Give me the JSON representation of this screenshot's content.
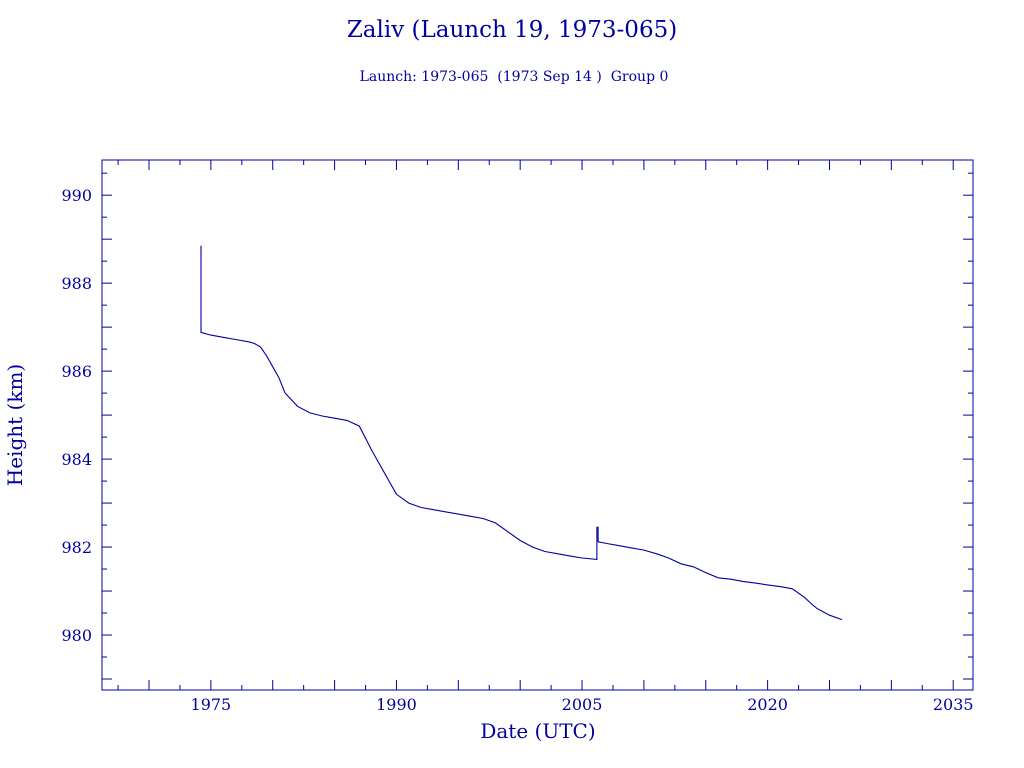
{
  "colors": {
    "ink": "#0000a0",
    "background": "#ffffff"
  },
  "chart_data": {
    "type": "line",
    "title": "Zaliv (Launch 19, 1973-065)",
    "subtitle": "Launch: 1973-065  (1973 Sep 14 )  Group 0",
    "xlabel": "Date (UTC)",
    "ylabel": "Height (km)",
    "xlim": [
      1966.2,
      2036.6
    ],
    "ylim": [
      978.75,
      990.8
    ],
    "x_major_ticks": [
      1975,
      1990,
      2005,
      2020,
      2035
    ],
    "x_tick_labels": [
      "1975",
      "1990",
      "2005",
      "2020",
      "2035"
    ],
    "y_major_ticks": [
      980,
      982,
      984,
      986,
      988,
      990
    ],
    "y_tick_labels": [
      "980",
      "982",
      "984",
      "986",
      "988",
      "990"
    ],
    "grid": false,
    "legend": "none",
    "series": [
      {
        "x": [
          1974.2,
          1974.2,
          1975.0,
          1976.0,
          1977.0,
          1978.0,
          1978.5,
          1979.0,
          1979.5,
          1980.0,
          1980.5,
          1981.0,
          1982.0,
          1983.0,
          1984.0,
          1985.0,
          1986.0,
          1987.0,
          1988.0,
          1989.0,
          1990.0,
          1991.0,
          1992.0,
          1993.0,
          1994.0,
          1995.0,
          1996.0,
          1997.0,
          1998.0,
          1999.0,
          2000.0,
          2001.0,
          2002.0,
          2003.0,
          2004.0,
          2005.0,
          2006.2,
          2006.2,
          2006.3,
          2006.3,
          2007.0,
          2008.0,
          2009.0,
          2010.0,
          2011.0,
          2012.0,
          2013.0,
          2014.0,
          2015.0,
          2016.0,
          2017.0,
          2018.0,
          2019.0,
          2020.0,
          2021.0,
          2022.0,
          2023.0,
          2023.5,
          2024.0,
          2025.0,
          2026.0
        ],
        "y": [
          988.85,
          986.88,
          986.82,
          986.77,
          986.72,
          986.67,
          986.63,
          986.55,
          986.35,
          986.1,
          985.85,
          985.5,
          985.2,
          985.05,
          984.98,
          984.93,
          984.88,
          984.75,
          984.2,
          983.7,
          983.2,
          983.0,
          982.9,
          982.85,
          982.8,
          982.75,
          982.7,
          982.65,
          982.55,
          982.35,
          982.15,
          982.0,
          981.9,
          981.85,
          981.8,
          981.75,
          981.72,
          982.45,
          982.45,
          982.12,
          982.08,
          982.03,
          981.98,
          981.93,
          981.85,
          981.75,
          981.62,
          981.55,
          981.42,
          981.3,
          981.27,
          981.22,
          981.18,
          981.14,
          981.1,
          981.05,
          980.85,
          980.72,
          980.6,
          980.45,
          980.35
        ]
      }
    ]
  }
}
